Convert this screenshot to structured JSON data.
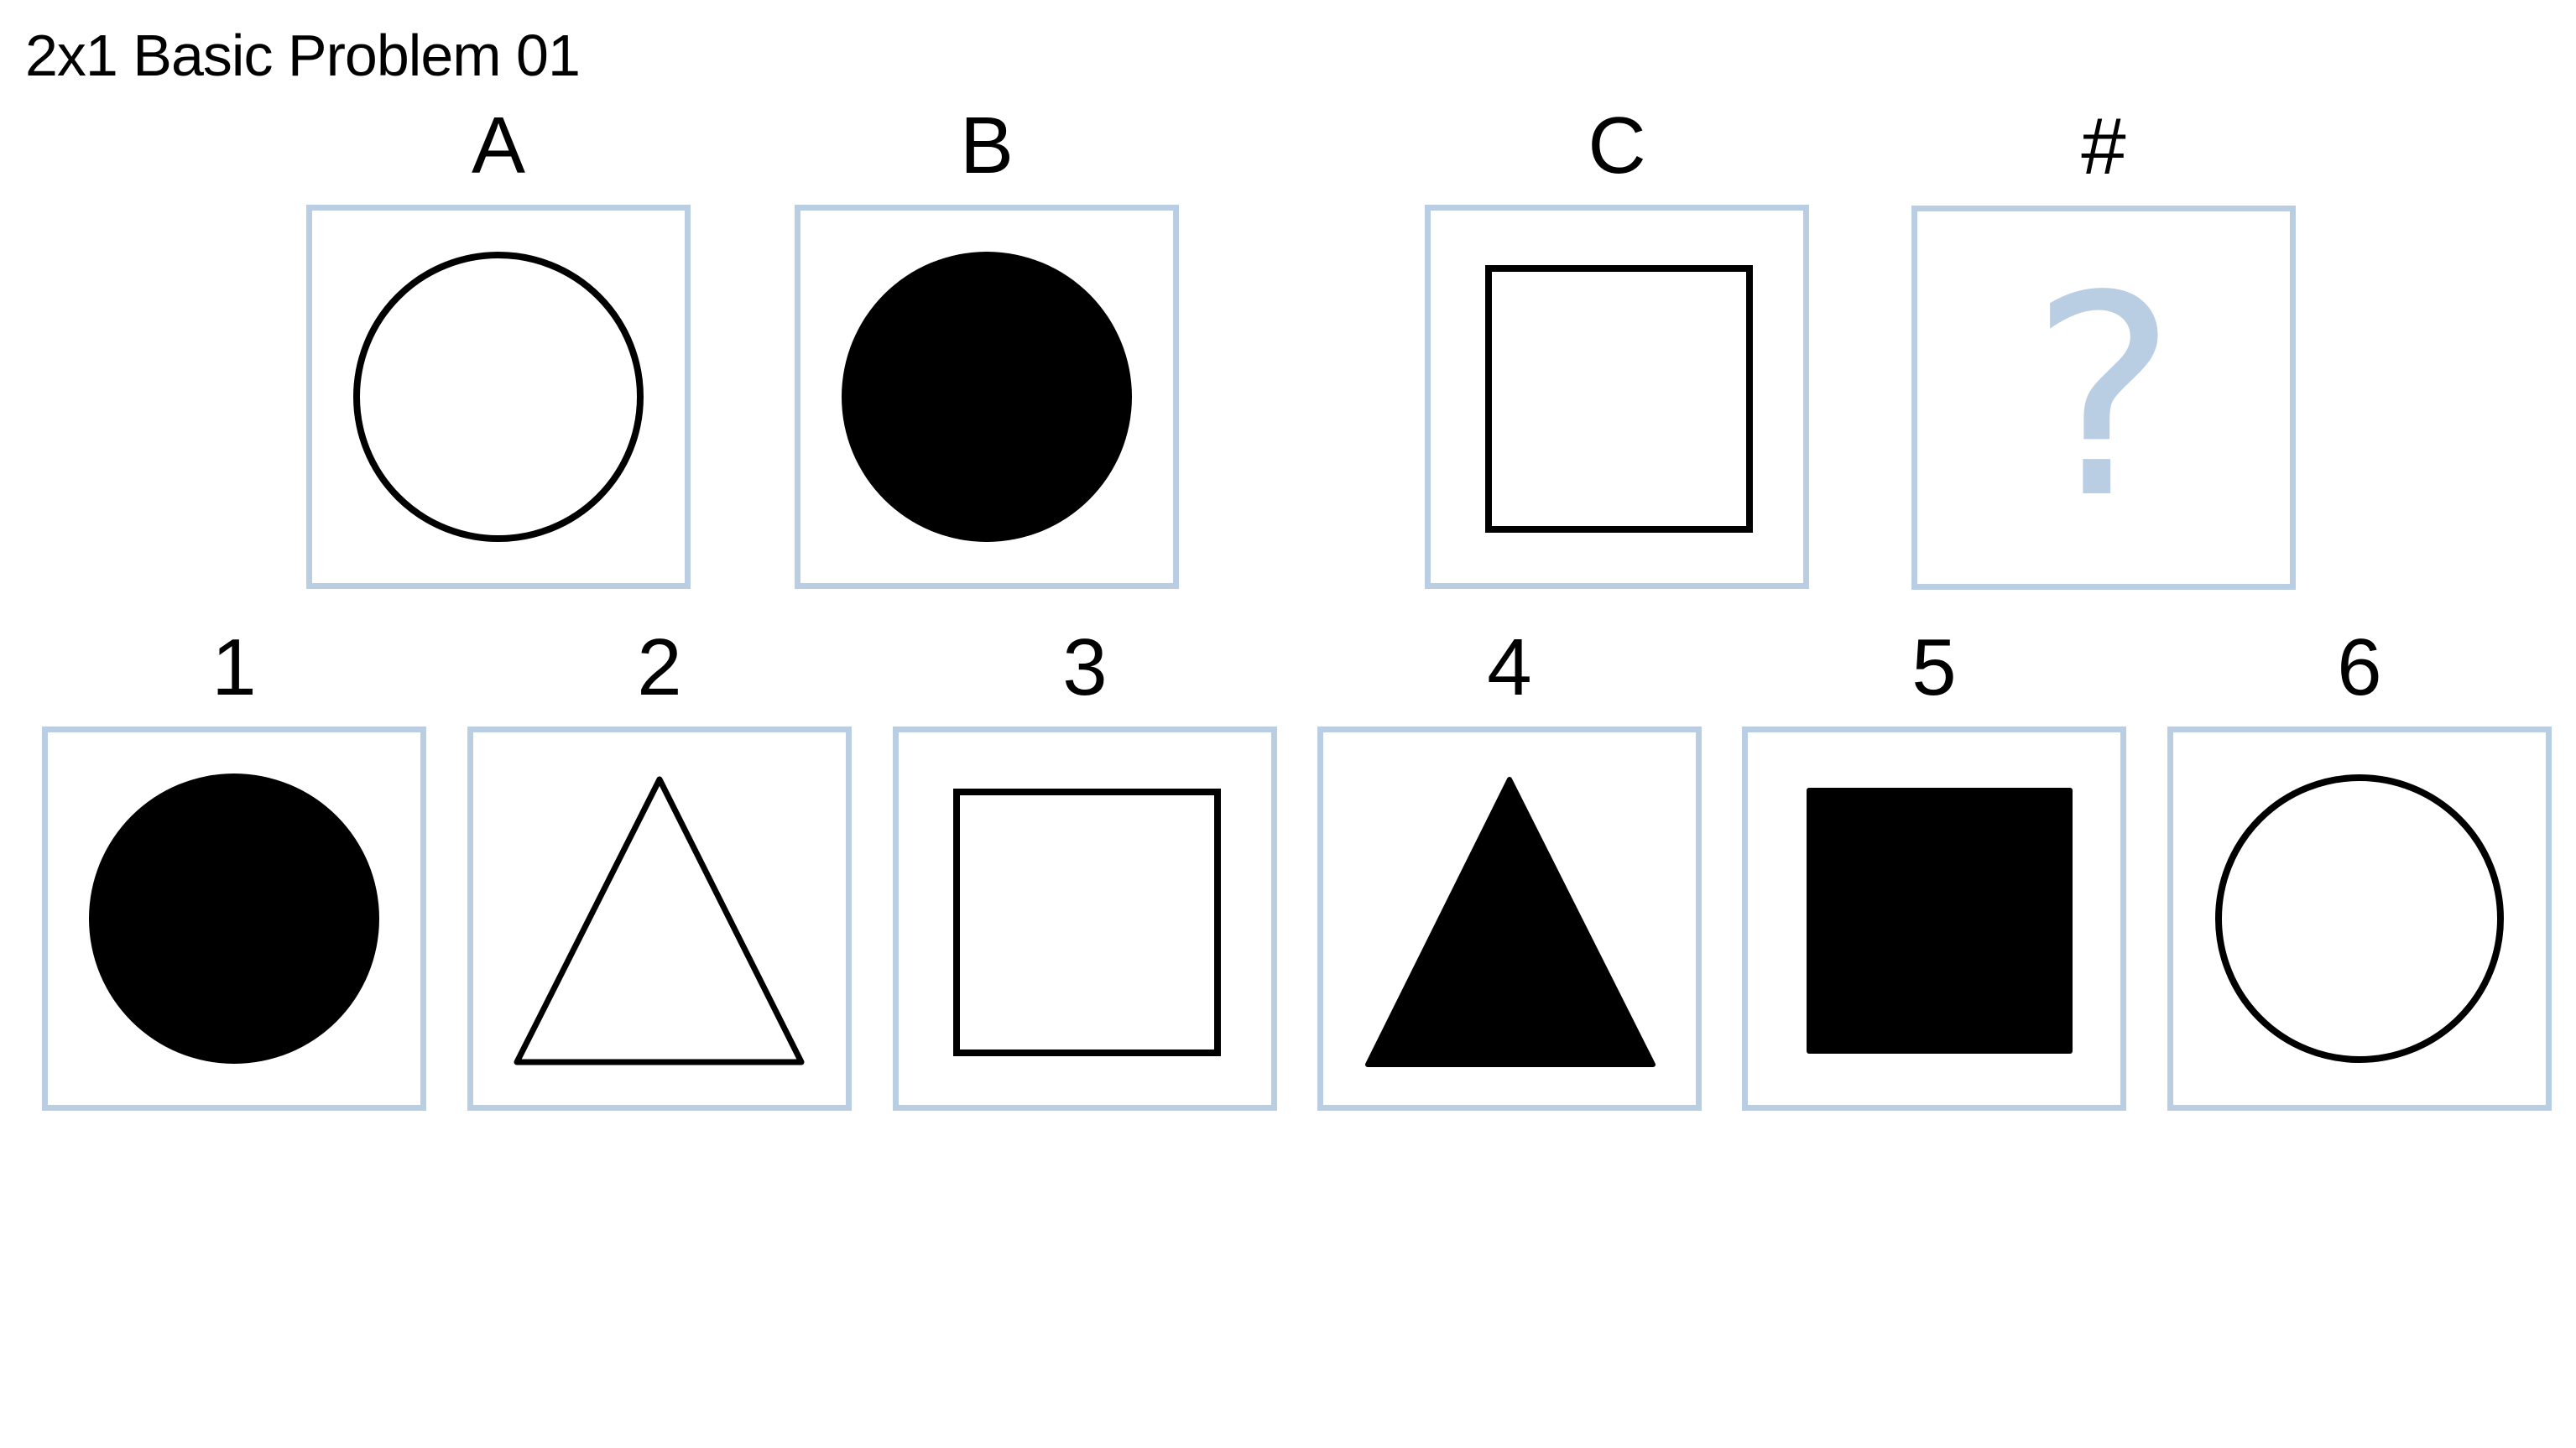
{
  "title": "2x1 Basic Problem 01",
  "problem": [
    {
      "label": "A",
      "figure": "circle",
      "fill": "outline"
    },
    {
      "label": "B",
      "figure": "circle",
      "fill": "solid"
    },
    {
      "label": "C",
      "figure": "square",
      "fill": "outline"
    },
    {
      "label": "#",
      "figure": "unknown",
      "placeholder": "?"
    }
  ],
  "choices": [
    {
      "label": "1",
      "figure": "circle",
      "fill": "solid"
    },
    {
      "label": "2",
      "figure": "triangle",
      "fill": "outline"
    },
    {
      "label": "3",
      "figure": "square",
      "fill": "outline"
    },
    {
      "label": "4",
      "figure": "triangle",
      "fill": "solid"
    },
    {
      "label": "5",
      "figure": "square",
      "fill": "solid"
    },
    {
      "label": "6",
      "figure": "circle",
      "fill": "outline"
    }
  ],
  "colors": {
    "frame": "#b9cde3",
    "shape": "#000000",
    "background": "#ffffff"
  }
}
